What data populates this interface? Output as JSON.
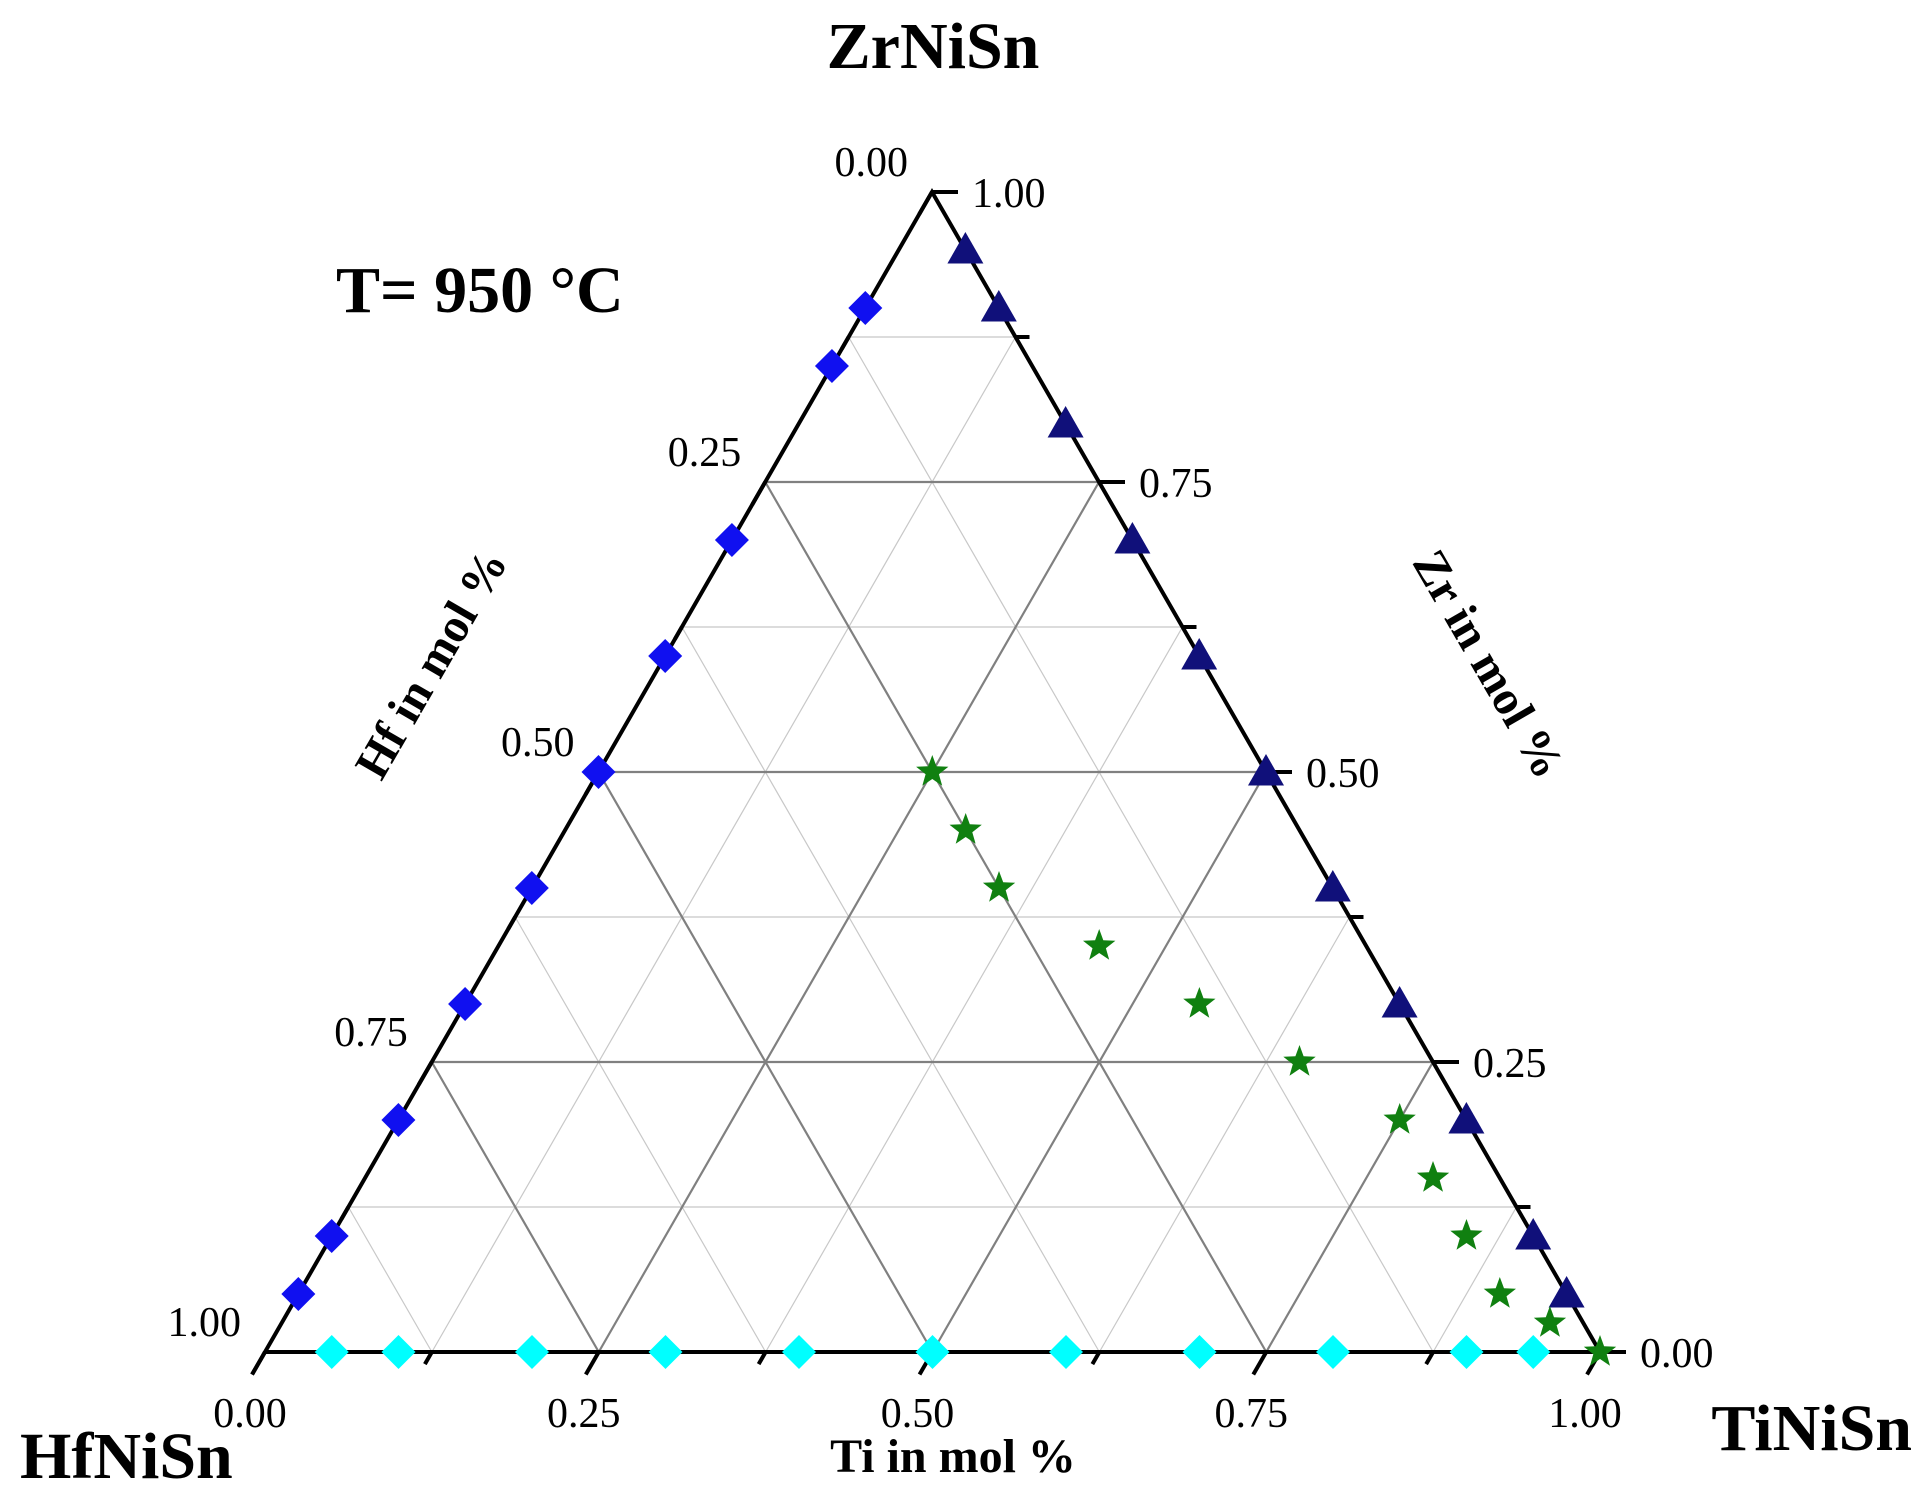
{
  "chart_data": {
    "type": "scatter",
    "subtype": "ternary",
    "title": "T= 950 °C",
    "corners": {
      "top": "ZrNiSn",
      "bottom_left": "HfNiSn",
      "bottom_right": "TiNiSn"
    },
    "axes": {
      "bottom": {
        "label": "Ti in mol %",
        "ticks": [
          "0.00",
          "0.25",
          "0.50",
          "0.75",
          "1.00"
        ]
      },
      "left": {
        "label": "Hf in mol %",
        "ticks": [
          "0.00",
          "0.25",
          "0.50",
          "0.75",
          "1.00"
        ]
      },
      "right": {
        "label": "Zr in mol %",
        "ticks": [
          "1.00",
          "0.75",
          "0.50",
          "0.25",
          "0.00"
        ]
      },
      "range": [
        0,
        1
      ],
      "major_step": 0.25,
      "minor_step": 0.125
    },
    "grid": true,
    "legend": "none",
    "series": [
      {
        "marker": "diamond",
        "color": "#1010f0",
        "points": [
          {
            "ti": 0,
            "zr": 0.9
          },
          {
            "ti": 0,
            "zr": 0.85
          },
          {
            "ti": 0,
            "zr": 0.7
          },
          {
            "ti": 0,
            "zr": 0.6
          },
          {
            "ti": 0,
            "zr": 0.5
          },
          {
            "ti": 0,
            "zr": 0.4
          },
          {
            "ti": 0,
            "zr": 0.3
          },
          {
            "ti": 0,
            "zr": 0.2
          },
          {
            "ti": 0,
            "zr": 0.1
          },
          {
            "ti": 0,
            "zr": 0.05
          }
        ]
      },
      {
        "marker": "triangle",
        "color": "#10107a",
        "points": [
          {
            "ti": 0.05,
            "zr": 0.95
          },
          {
            "ti": 0.1,
            "zr": 0.9
          },
          {
            "ti": 0.2,
            "zr": 0.8
          },
          {
            "ti": 0.3,
            "zr": 0.7
          },
          {
            "ti": 0.4,
            "zr": 0.6
          },
          {
            "ti": 0.5,
            "zr": 0.5
          },
          {
            "ti": 0.6,
            "zr": 0.4
          },
          {
            "ti": 0.7,
            "zr": 0.3
          },
          {
            "ti": 0.8,
            "zr": 0.2
          },
          {
            "ti": 0.9,
            "zr": 0.1
          },
          {
            "ti": 0.95,
            "zr": 0.05
          }
        ]
      },
      {
        "marker": "diamond",
        "color": "#00ffff",
        "points": [
          {
            "ti": 0.05,
            "zr": 0
          },
          {
            "ti": 0.1,
            "zr": 0
          },
          {
            "ti": 0.2,
            "zr": 0
          },
          {
            "ti": 0.3,
            "zr": 0
          },
          {
            "ti": 0.4,
            "zr": 0
          },
          {
            "ti": 0.5,
            "zr": 0
          },
          {
            "ti": 0.6,
            "zr": 0
          },
          {
            "ti": 0.7,
            "zr": 0
          },
          {
            "ti": 0.8,
            "zr": 0
          },
          {
            "ti": 0.9,
            "zr": 0
          },
          {
            "ti": 0.95,
            "zr": 0
          }
        ]
      },
      {
        "marker": "star",
        "color": "#108010",
        "points": [
          {
            "ti": 0.25,
            "zr": 0.5
          },
          {
            "ti": 0.3,
            "zr": 0.45
          },
          {
            "ti": 0.35,
            "zr": 0.4
          },
          {
            "ti": 0.45,
            "zr": 0.35
          },
          {
            "ti": 0.55,
            "zr": 0.3
          },
          {
            "ti": 0.65,
            "zr": 0.25
          },
          {
            "ti": 0.75,
            "zr": 0.2
          },
          {
            "ti": 0.8,
            "zr": 0.15
          },
          {
            "ti": 0.85,
            "zr": 0.1
          },
          {
            "ti": 0.9,
            "zr": 0.05
          },
          {
            "ti": 0.95,
            "zr": 0.025
          },
          {
            "ti": 1.0,
            "zr": 0
          }
        ]
      }
    ]
  }
}
